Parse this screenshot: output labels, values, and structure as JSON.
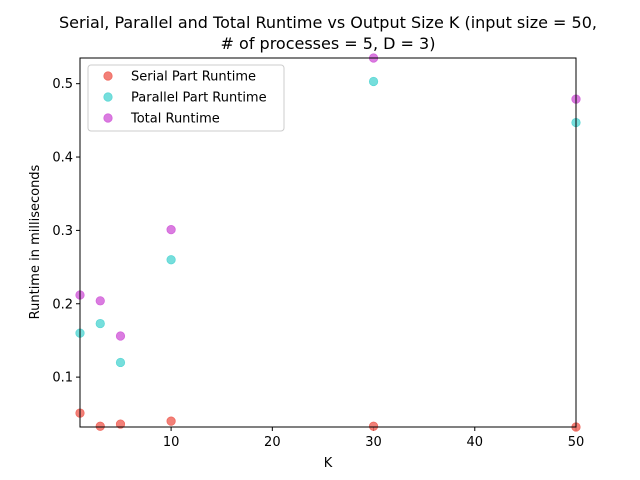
{
  "chart_data": {
    "type": "scatter",
    "title_line1": "Serial, Parallel and Total Runtime vs Output Size K (input size = 50,",
    "title_line2": "# of processes = 5, D = 3)",
    "xlabel": "K",
    "ylabel": "Runtime in milliseconds",
    "xlim": [
      1,
      50
    ],
    "ylim": [
      0.032,
      0.535
    ],
    "xticks": [
      10,
      20,
      30,
      40,
      50
    ],
    "yticks": [
      0.1,
      0.2,
      0.3,
      0.4,
      0.5
    ],
    "xtick_labels": [
      "10",
      "20",
      "30",
      "40",
      "50"
    ],
    "ytick_labels": [
      "0.1",
      "0.2",
      "0.3",
      "0.4",
      "0.5"
    ],
    "grid": false,
    "legend_position": "upper-left",
    "series": [
      {
        "name": "Serial Part Runtime",
        "color": "#f06a60",
        "x": [
          1,
          3,
          5,
          10,
          30,
          50
        ],
        "y": [
          0.051,
          0.033,
          0.036,
          0.04,
          0.033,
          0.032
        ]
      },
      {
        "name": "Parallel Part Runtime",
        "color": "#5ed8d6",
        "x": [
          1,
          3,
          5,
          10,
          30,
          50
        ],
        "y": [
          0.16,
          0.173,
          0.12,
          0.26,
          0.503,
          0.447
        ]
      },
      {
        "name": "Total Runtime",
        "color": "#d465db",
        "x": [
          1,
          3,
          5,
          10,
          30,
          50
        ],
        "y": [
          0.212,
          0.204,
          0.156,
          0.301,
          0.535,
          0.479
        ]
      }
    ]
  }
}
